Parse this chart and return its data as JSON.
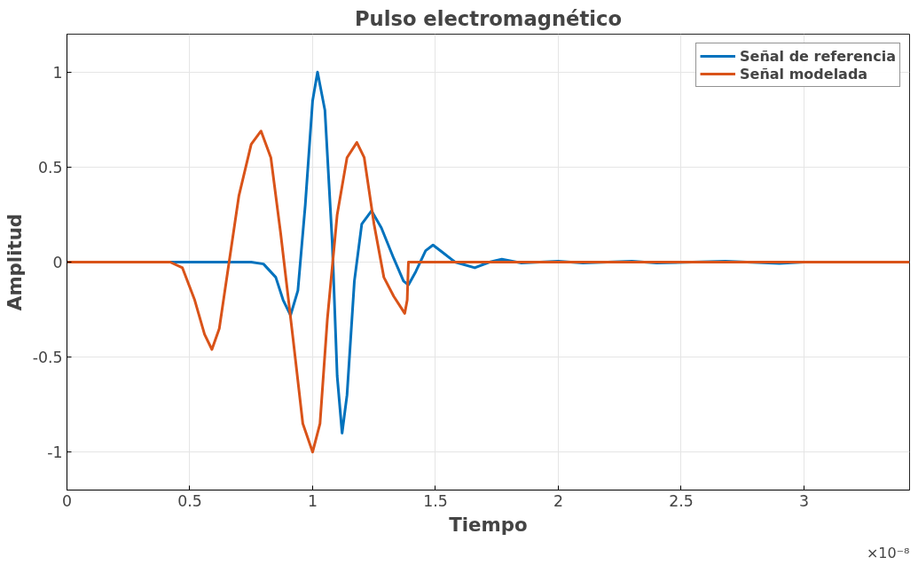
{
  "chart_data": {
    "type": "line",
    "title": "Pulso electromagnético",
    "xlabel": "Tiempo",
    "ylabel": "Amplitud",
    "xlim": [
      0,
      3.43
    ],
    "ylim": [
      -1.2,
      1.2
    ],
    "xticks": [
      0,
      0.5,
      1,
      1.5,
      2,
      2.5,
      3
    ],
    "yticks": [
      -1,
      -0.5,
      0,
      0.5,
      1
    ],
    "grid": true,
    "legend": "top right",
    "line_style": "solid",
    "marker": "none",
    "annotations": [
      "×10⁻⁸"
    ],
    "series": [
      {
        "name": "Señal de referencia",
        "color": "#0072bd",
        "x": [
          0,
          0.75,
          0.8,
          0.85,
          0.88,
          0.91,
          0.94,
          0.97,
          1.0,
          1.02,
          1.05,
          1.08,
          1.1,
          1.12,
          1.14,
          1.17,
          1.2,
          1.24,
          1.28,
          1.33,
          1.37,
          1.39,
          1.42,
          1.46,
          1.49,
          1.53,
          1.58,
          1.66,
          1.72,
          1.77,
          1.85,
          2.0,
          2.1,
          2.3,
          2.4,
          2.68,
          2.9,
          3.0,
          3.43
        ],
        "values": [
          0,
          0,
          -0.01,
          -0.08,
          -0.2,
          -0.28,
          -0.15,
          0.3,
          0.85,
          1.0,
          0.8,
          0.1,
          -0.6,
          -0.9,
          -0.7,
          -0.1,
          0.2,
          0.27,
          0.18,
          0.02,
          -0.1,
          -0.12,
          -0.05,
          0.06,
          0.09,
          0.05,
          0,
          -0.03,
          0,
          0.015,
          -0.005,
          0.005,
          -0.005,
          0.005,
          -0.005,
          0.005,
          -0.007,
          0,
          0
        ]
      },
      {
        "name": "Señal modelada",
        "color": "#d95319",
        "x": [
          0,
          0.42,
          0.47,
          0.52,
          0.56,
          0.59,
          0.62,
          0.66,
          0.7,
          0.75,
          0.79,
          0.83,
          0.87,
          0.92,
          0.96,
          1.0,
          1.03,
          1.06,
          1.1,
          1.14,
          1.18,
          1.21,
          1.25,
          1.29,
          1.33,
          1.36,
          1.375,
          1.385,
          1.39,
          3.43
        ],
        "values": [
          0,
          0,
          -0.03,
          -0.2,
          -0.38,
          -0.46,
          -0.35,
          0,
          0.35,
          0.62,
          0.69,
          0.55,
          0.15,
          -0.4,
          -0.85,
          -1.0,
          -0.85,
          -0.3,
          0.25,
          0.55,
          0.63,
          0.55,
          0.2,
          -0.08,
          -0.18,
          -0.24,
          -0.27,
          -0.2,
          0,
          0
        ]
      }
    ]
  }
}
